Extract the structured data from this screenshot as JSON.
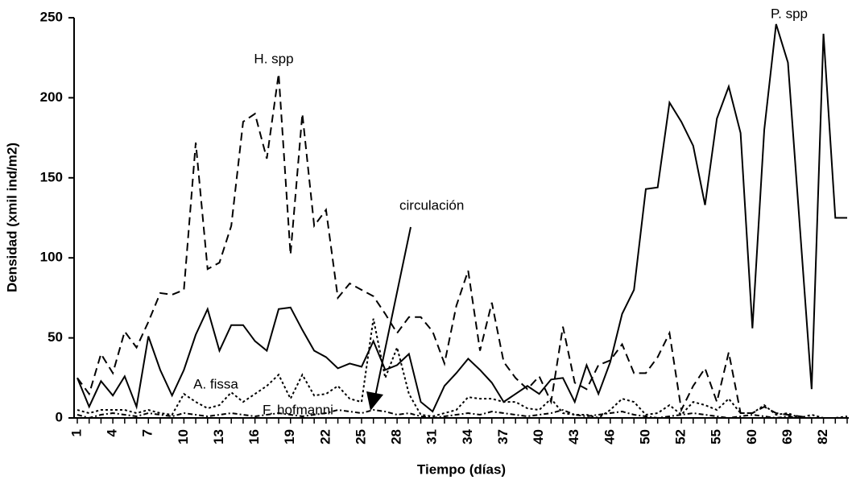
{
  "chart_data": {
    "type": "line",
    "xlabel": "Tiempo (días)",
    "ylabel": "Densidad (xmil ind/m2)",
    "annotation": "circulación",
    "categories": [
      "1",
      null,
      null,
      "4",
      null,
      null,
      "7",
      null,
      null,
      "10",
      null,
      null,
      "13",
      null,
      null,
      "16",
      null,
      null,
      "19",
      null,
      null,
      "22",
      null,
      null,
      "25",
      null,
      null,
      "28",
      null,
      null,
      "31",
      null,
      null,
      "34",
      null,
      null,
      "37",
      null,
      null,
      "40",
      null,
      null,
      "43",
      null,
      null,
      "46",
      null,
      null,
      "50",
      null,
      null,
      "52",
      null,
      null,
      "55",
      null,
      null,
      "60",
      null,
      null,
      "69",
      null,
      null,
      "82",
      null,
      null
    ],
    "series": [
      {
        "name": "P. spp",
        "color": "#000000",
        "dash": "none",
        "values": [
          25,
          7,
          23,
          14,
          26,
          7,
          51,
          30,
          14,
          30,
          52,
          68,
          42,
          58,
          58,
          48,
          42,
          68,
          69,
          55,
          42,
          38,
          31,
          34,
          32,
          48,
          30,
          33,
          40,
          10,
          4,
          20,
          28,
          37,
          30,
          22,
          10,
          15,
          20,
          15,
          24,
          25,
          10,
          33,
          15,
          35,
          65,
          80,
          143,
          144,
          197,
          185,
          170,
          133,
          187,
          207,
          178,
          56,
          180,
          246,
          222,
          120,
          18,
          240,
          125,
          125
        ]
      },
      {
        "name": "H. spp",
        "color": "#000000",
        "dash": "10,6",
        "values": [
          25,
          15,
          40,
          28,
          54,
          44,
          60,
          78,
          77,
          80,
          172,
          93,
          97,
          120,
          185,
          190,
          162,
          215,
          102,
          190,
          120,
          130,
          75,
          84,
          80,
          76,
          65,
          53,
          63,
          63,
          54,
          34,
          70,
          92,
          42,
          72,
          35,
          25,
          18,
          26,
          10,
          57,
          22,
          18,
          33,
          36,
          46,
          28,
          28,
          38,
          53,
          5,
          20,
          31,
          10,
          41,
          3,
          3,
          7,
          3,
          2,
          1,
          0,
          0,
          0,
          0
        ]
      },
      {
        "name": "A. fissa",
        "color": "#000000",
        "dash": "3,3",
        "values": [
          5,
          3,
          5,
          5,
          5,
          3,
          5,
          3,
          2,
          15,
          10,
          6,
          8,
          16,
          10,
          15,
          20,
          27,
          12,
          27,
          14,
          15,
          20,
          12,
          10,
          62,
          25,
          44,
          15,
          2,
          1,
          3,
          5,
          13,
          12,
          12,
          10,
          10,
          6,
          5,
          12,
          3,
          2,
          2,
          0,
          5,
          12,
          10,
          2,
          3,
          8,
          2,
          10,
          8,
          5,
          12,
          3,
          3,
          8,
          2,
          3,
          0,
          2,
          0,
          0,
          1
        ]
      },
      {
        "name": "F. hofmanni",
        "color": "#000000",
        "dash": "6,3,2,3",
        "values": [
          2,
          0,
          2,
          3,
          2,
          1,
          3,
          2,
          1,
          3,
          2,
          1,
          2,
          3,
          2,
          1,
          2,
          3,
          2,
          1,
          2,
          3,
          5,
          4,
          3,
          5,
          4,
          2,
          3,
          1,
          0,
          1,
          2,
          3,
          2,
          4,
          3,
          2,
          1,
          2,
          3,
          5,
          2,
          1,
          2,
          3,
          4,
          2,
          1,
          0,
          1,
          2,
          3,
          2,
          1,
          0,
          1,
          2,
          1,
          0,
          1,
          0,
          0,
          0,
          0,
          0
        ]
      }
    ],
    "ylim": [
      0,
      250
    ],
    "yticks": [
      0,
      50,
      100,
      150,
      200,
      250
    ],
    "grid": false
  }
}
